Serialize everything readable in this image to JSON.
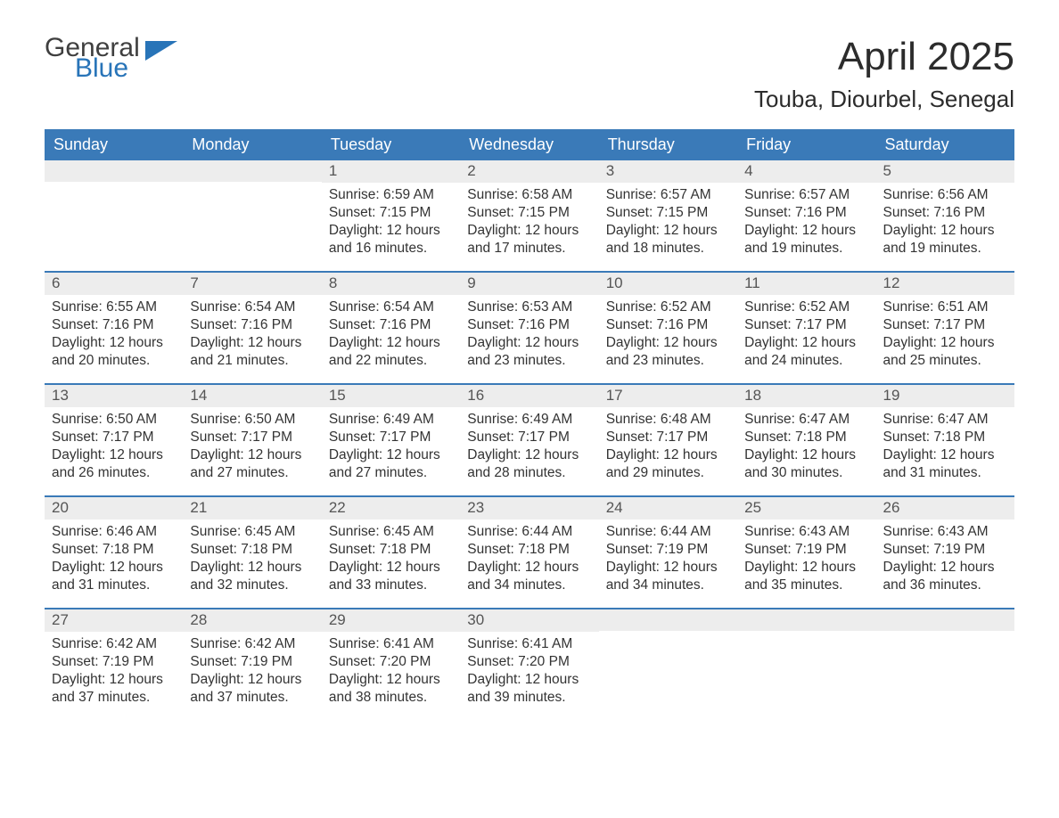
{
  "logo": {
    "line1": "General",
    "line2": "Blue",
    "flag_color": "#2874b8"
  },
  "title": "April 2025",
  "location": "Touba, Diourbel, Senegal",
  "colors": {
    "header_bg": "#3a7ab8",
    "header_text": "#ffffff",
    "daynum_bg": "#ededed",
    "week_border": "#3a7ab8",
    "body_text": "#333333",
    "title_text": "#2c2c2c"
  },
  "fonts": {
    "title_size_pt": 33,
    "location_size_pt": 20,
    "dayhead_size_pt": 14,
    "body_size_pt": 12
  },
  "day_headers": [
    "Sunday",
    "Monday",
    "Tuesday",
    "Wednesday",
    "Thursday",
    "Friday",
    "Saturday"
  ],
  "weeks": [
    [
      null,
      null,
      {
        "n": "1",
        "sunrise": "6:59 AM",
        "sunset": "7:15 PM",
        "daylight": "12 hours and 16 minutes."
      },
      {
        "n": "2",
        "sunrise": "6:58 AM",
        "sunset": "7:15 PM",
        "daylight": "12 hours and 17 minutes."
      },
      {
        "n": "3",
        "sunrise": "6:57 AM",
        "sunset": "7:15 PM",
        "daylight": "12 hours and 18 minutes."
      },
      {
        "n": "4",
        "sunrise": "6:57 AM",
        "sunset": "7:16 PM",
        "daylight": "12 hours and 19 minutes."
      },
      {
        "n": "5",
        "sunrise": "6:56 AM",
        "sunset": "7:16 PM",
        "daylight": "12 hours and 19 minutes."
      }
    ],
    [
      {
        "n": "6",
        "sunrise": "6:55 AM",
        "sunset": "7:16 PM",
        "daylight": "12 hours and 20 minutes."
      },
      {
        "n": "7",
        "sunrise": "6:54 AM",
        "sunset": "7:16 PM",
        "daylight": "12 hours and 21 minutes."
      },
      {
        "n": "8",
        "sunrise": "6:54 AM",
        "sunset": "7:16 PM",
        "daylight": "12 hours and 22 minutes."
      },
      {
        "n": "9",
        "sunrise": "6:53 AM",
        "sunset": "7:16 PM",
        "daylight": "12 hours and 23 minutes."
      },
      {
        "n": "10",
        "sunrise": "6:52 AM",
        "sunset": "7:16 PM",
        "daylight": "12 hours and 23 minutes."
      },
      {
        "n": "11",
        "sunrise": "6:52 AM",
        "sunset": "7:17 PM",
        "daylight": "12 hours and 24 minutes."
      },
      {
        "n": "12",
        "sunrise": "6:51 AM",
        "sunset": "7:17 PM",
        "daylight": "12 hours and 25 minutes."
      }
    ],
    [
      {
        "n": "13",
        "sunrise": "6:50 AM",
        "sunset": "7:17 PM",
        "daylight": "12 hours and 26 minutes."
      },
      {
        "n": "14",
        "sunrise": "6:50 AM",
        "sunset": "7:17 PM",
        "daylight": "12 hours and 27 minutes."
      },
      {
        "n": "15",
        "sunrise": "6:49 AM",
        "sunset": "7:17 PM",
        "daylight": "12 hours and 27 minutes."
      },
      {
        "n": "16",
        "sunrise": "6:49 AM",
        "sunset": "7:17 PM",
        "daylight": "12 hours and 28 minutes."
      },
      {
        "n": "17",
        "sunrise": "6:48 AM",
        "sunset": "7:17 PM",
        "daylight": "12 hours and 29 minutes."
      },
      {
        "n": "18",
        "sunrise": "6:47 AM",
        "sunset": "7:18 PM",
        "daylight": "12 hours and 30 minutes."
      },
      {
        "n": "19",
        "sunrise": "6:47 AM",
        "sunset": "7:18 PM",
        "daylight": "12 hours and 31 minutes."
      }
    ],
    [
      {
        "n": "20",
        "sunrise": "6:46 AM",
        "sunset": "7:18 PM",
        "daylight": "12 hours and 31 minutes."
      },
      {
        "n": "21",
        "sunrise": "6:45 AM",
        "sunset": "7:18 PM",
        "daylight": "12 hours and 32 minutes."
      },
      {
        "n": "22",
        "sunrise": "6:45 AM",
        "sunset": "7:18 PM",
        "daylight": "12 hours and 33 minutes."
      },
      {
        "n": "23",
        "sunrise": "6:44 AM",
        "sunset": "7:18 PM",
        "daylight": "12 hours and 34 minutes."
      },
      {
        "n": "24",
        "sunrise": "6:44 AM",
        "sunset": "7:19 PM",
        "daylight": "12 hours and 34 minutes."
      },
      {
        "n": "25",
        "sunrise": "6:43 AM",
        "sunset": "7:19 PM",
        "daylight": "12 hours and 35 minutes."
      },
      {
        "n": "26",
        "sunrise": "6:43 AM",
        "sunset": "7:19 PM",
        "daylight": "12 hours and 36 minutes."
      }
    ],
    [
      {
        "n": "27",
        "sunrise": "6:42 AM",
        "sunset": "7:19 PM",
        "daylight": "12 hours and 37 minutes."
      },
      {
        "n": "28",
        "sunrise": "6:42 AM",
        "sunset": "7:19 PM",
        "daylight": "12 hours and 37 minutes."
      },
      {
        "n": "29",
        "sunrise": "6:41 AM",
        "sunset": "7:20 PM",
        "daylight": "12 hours and 38 minutes."
      },
      {
        "n": "30",
        "sunrise": "6:41 AM",
        "sunset": "7:20 PM",
        "daylight": "12 hours and 39 minutes."
      },
      null,
      null,
      null
    ]
  ],
  "labels": {
    "sunrise": "Sunrise:",
    "sunset": "Sunset:",
    "daylight": "Daylight:"
  }
}
